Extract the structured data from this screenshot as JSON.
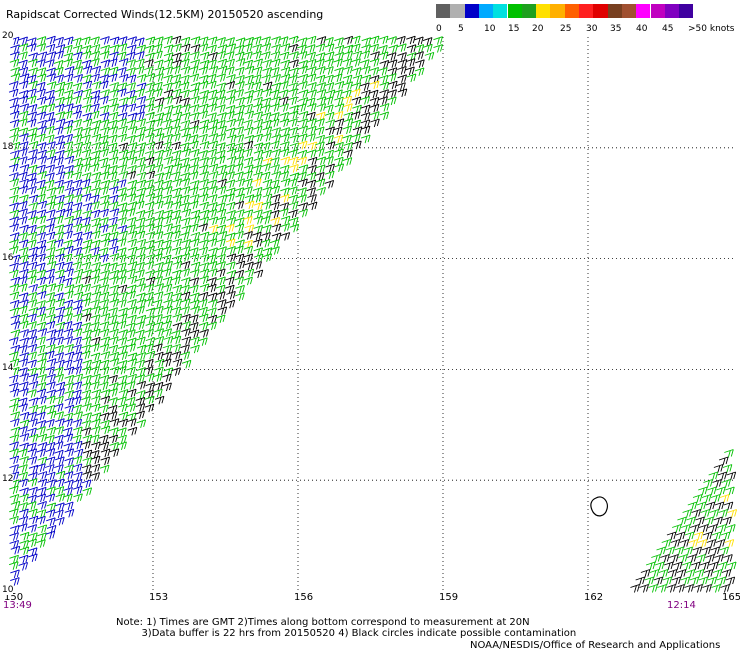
{
  "title": "Rapidscat Corrected Winds(12.5KM) 20150520 ascending",
  "legend": {
    "colors": [
      "#606060",
      "#b0b0b0",
      "#0000c8",
      "#00aaff",
      "#00e0e0",
      "#00c000",
      "#1ea01e",
      "#ffe000",
      "#ffb000",
      "#ff6000",
      "#ff2020",
      "#e00000",
      "#784020",
      "#a05030",
      "#ff00ff",
      "#c000c0",
      "#8000c0",
      "#4000a0"
    ],
    "labels": [
      "0",
      "5",
      "10",
      "15",
      "20",
      "25",
      "30",
      "35",
      "40",
      "45",
      ">50 knots"
    ]
  },
  "map": {
    "x_ticks": [
      "150",
      "153",
      "156",
      "159",
      "162",
      "165"
    ],
    "y_ticks": [
      "20",
      "18",
      "16",
      "14",
      "12",
      "10"
    ],
    "grid_lon": [
      153,
      156,
      159,
      162
    ],
    "grid_lat": [
      18,
      16,
      14,
      12
    ],
    "lon_range": [
      150,
      165
    ],
    "lat_range": [
      10,
      20
    ]
  },
  "times": {
    "left": "13:49",
    "right": "12:14"
  },
  "notes": {
    "line1": "Note: 1) Times are GMT 2)Times along bottom correspond to measurement at 20N",
    "line2": "3)Data buffer is 22 hrs from 20150520 4) Black circles indicate possible contamination"
  },
  "credit": "NOAA/NESDIS/Office of Research and Applications"
}
